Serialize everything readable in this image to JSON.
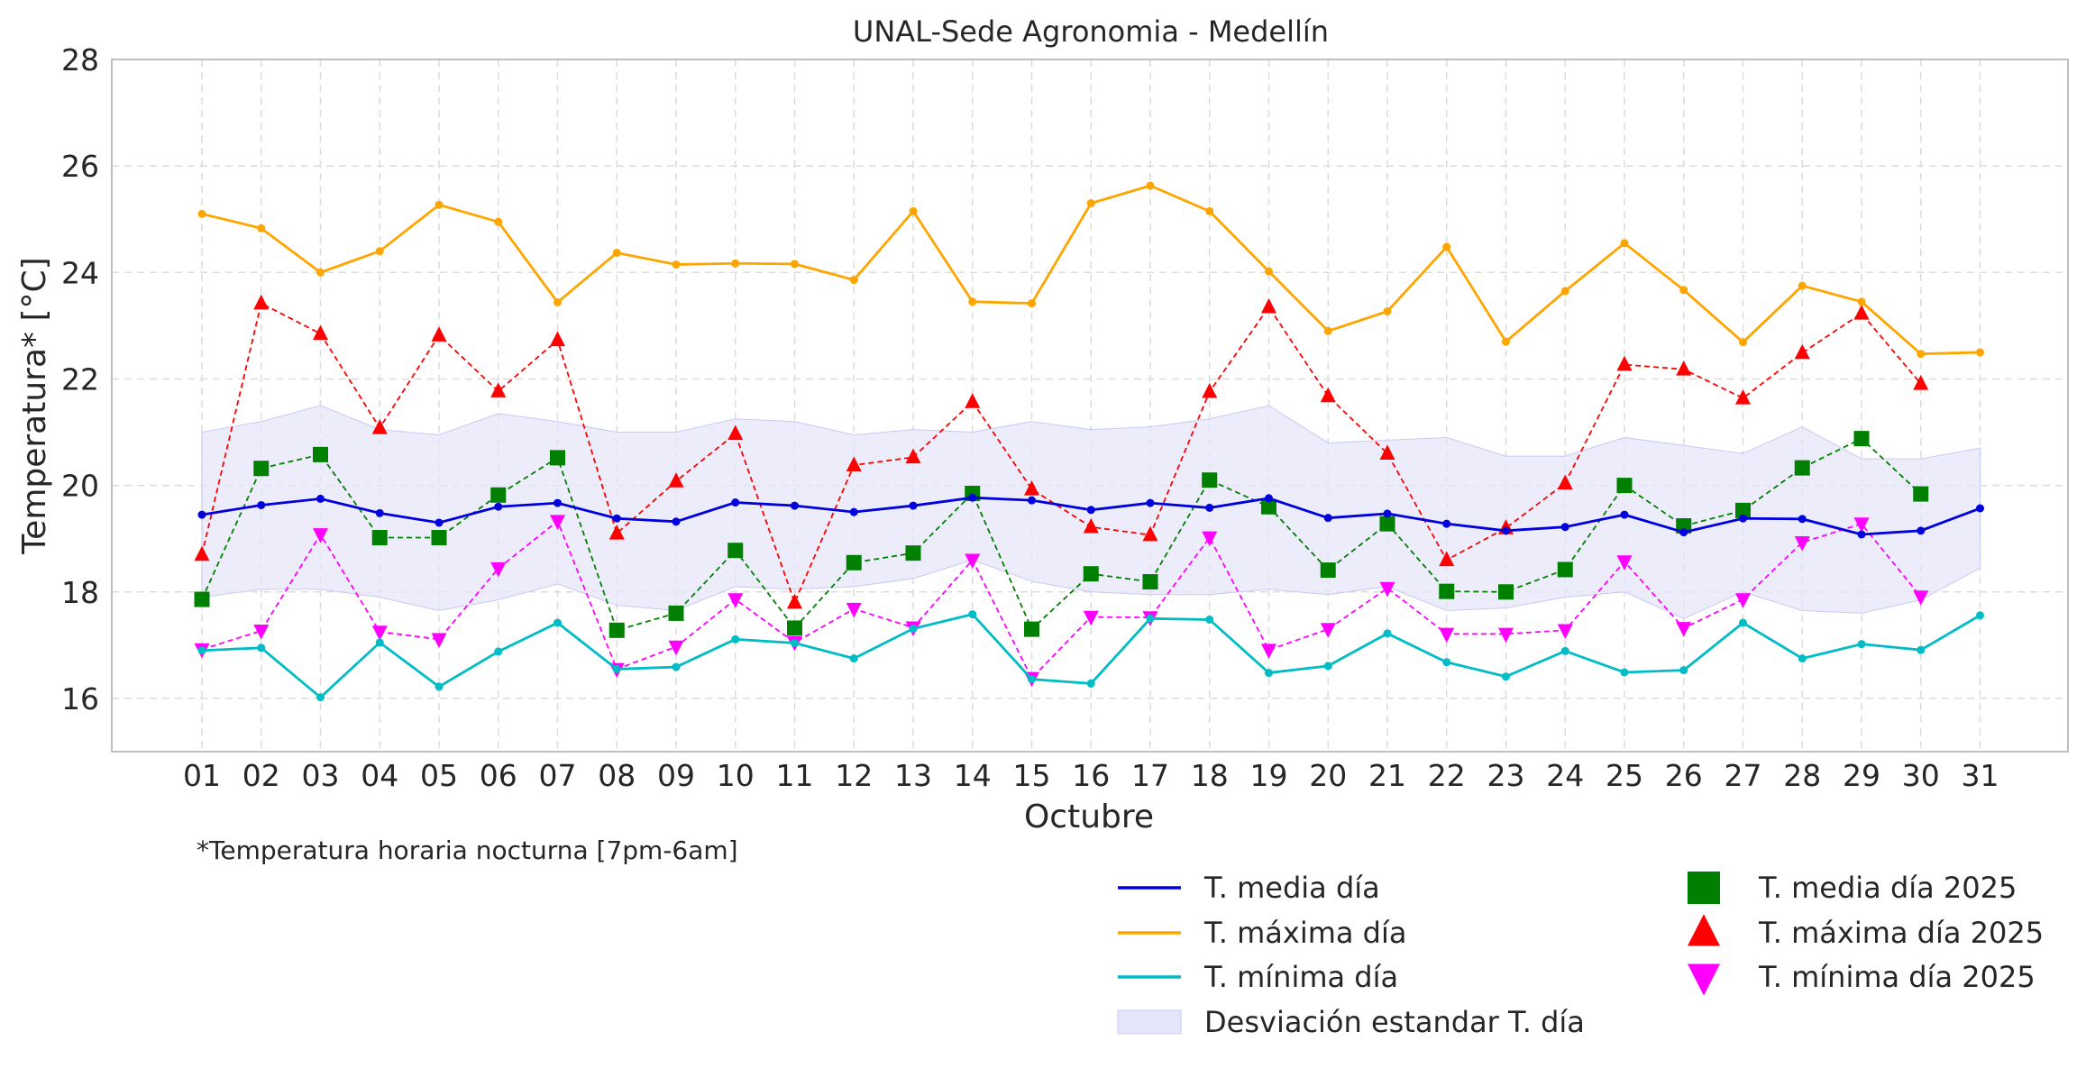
{
  "chart_data": {
    "type": "line",
    "title": "UNAL-Sede Agronomia - Medellín",
    "xlabel": "Octubre",
    "ylabel": "Temperatura* [°C]",
    "footnote": "*Temperatura horaria nocturna [7pm-6am]",
    "ylim": [
      15,
      28
    ],
    "yticks": [
      16,
      18,
      20,
      22,
      24,
      26,
      28
    ],
    "grid": true,
    "legend_position": "bottom-right, outside plot",
    "categories": [
      "01",
      "02",
      "03",
      "04",
      "05",
      "06",
      "07",
      "08",
      "09",
      "10",
      "11",
      "12",
      "13",
      "14",
      "15",
      "16",
      "17",
      "18",
      "19",
      "20",
      "21",
      "22",
      "23",
      "24",
      "25",
      "26",
      "27",
      "28",
      "29",
      "30",
      "31"
    ],
    "band": {
      "name": "Desviación estandar T. día",
      "color": "#e6e6fa",
      "upper": [
        21.0,
        21.2,
        21.5,
        21.05,
        20.95,
        21.35,
        21.2,
        21.0,
        21.0,
        21.25,
        21.2,
        20.95,
        21.05,
        21.0,
        21.2,
        21.05,
        21.1,
        21.25,
        21.5,
        20.8,
        20.85,
        20.9,
        20.55,
        20.55,
        20.9,
        20.75,
        20.6,
        21.1,
        20.5,
        20.5,
        20.7
      ],
      "lower": [
        17.9,
        18.05,
        18.05,
        17.9,
        17.65,
        17.85,
        18.15,
        17.75,
        17.65,
        18.1,
        18.05,
        18.1,
        18.25,
        18.6,
        18.2,
        18.0,
        17.95,
        17.95,
        18.05,
        17.95,
        18.1,
        17.65,
        17.7,
        17.9,
        18.0,
        17.5,
        18.0,
        17.65,
        17.6,
        17.85,
        18.45
      ]
    },
    "series": [
      {
        "name": "T. media día",
        "color": "#0000dd",
        "style": "solid",
        "marker": "dot",
        "values": [
          19.45,
          19.63,
          19.75,
          19.48,
          19.3,
          19.6,
          19.67,
          19.38,
          19.32,
          19.68,
          19.62,
          19.5,
          19.62,
          19.77,
          19.72,
          19.54,
          19.67,
          19.58,
          19.76,
          19.39,
          19.47,
          19.28,
          19.15,
          19.22,
          19.45,
          19.12,
          19.38,
          19.37,
          19.08,
          19.15,
          19.57
        ]
      },
      {
        "name": "T. máxima día",
        "color": "#ffa500",
        "style": "solid",
        "marker": "dot",
        "values": [
          25.1,
          24.83,
          24.0,
          24.4,
          25.27,
          24.95,
          23.44,
          24.37,
          24.15,
          24.17,
          24.16,
          23.86,
          25.15,
          23.45,
          23.42,
          25.3,
          25.63,
          25.15,
          24.02,
          22.9,
          23.27,
          24.48,
          22.7,
          23.65,
          24.55,
          23.67,
          22.69,
          23.75,
          23.45,
          22.47,
          22.5
        ]
      },
      {
        "name": "T. mínima día",
        "color": "#00bcc4",
        "style": "solid",
        "marker": "dot",
        "values": [
          16.9,
          16.95,
          16.02,
          17.05,
          16.22,
          16.88,
          17.42,
          16.55,
          16.59,
          17.11,
          17.04,
          16.75,
          17.31,
          17.58,
          16.36,
          16.28,
          17.5,
          17.48,
          16.48,
          16.61,
          17.22,
          16.68,
          16.41,
          16.89,
          16.49,
          16.53,
          17.42,
          16.75,
          17.02,
          16.91,
          17.56
        ]
      },
      {
        "name": "T. media día 2025",
        "color": "#008000",
        "style": "dashed",
        "marker": "square",
        "values": [
          17.86,
          20.32,
          20.58,
          19.02,
          19.02,
          19.82,
          20.52,
          17.28,
          17.6,
          18.78,
          17.32,
          18.55,
          18.73,
          19.85,
          17.3,
          18.34,
          18.19,
          20.1,
          19.6,
          18.41,
          19.28,
          18.01,
          18.0,
          18.42,
          20.0,
          19.24,
          19.53,
          20.33,
          20.88,
          19.84,
          null
        ]
      },
      {
        "name": "T. máxima día 2025",
        "color": "#ff0000",
        "style": "dashed",
        "marker": "triangle-up",
        "values": [
          18.7,
          23.42,
          22.85,
          21.08,
          22.82,
          21.77,
          22.73,
          19.1,
          20.08,
          20.97,
          17.8,
          20.38,
          20.53,
          21.57,
          19.93,
          19.22,
          19.07,
          21.76,
          23.35,
          21.68,
          20.6,
          18.6,
          19.2,
          20.04,
          22.27,
          22.18,
          21.64,
          22.49,
          23.23,
          21.91,
          null
        ]
      },
      {
        "name": "T. mínima día 2025",
        "color": "#ff00ff",
        "style": "dashed",
        "marker": "triangle-down",
        "values": [
          16.92,
          17.27,
          19.08,
          17.25,
          17.11,
          18.44,
          19.33,
          16.55,
          16.97,
          17.86,
          17.05,
          17.68,
          17.33,
          18.6,
          16.38,
          17.53,
          17.52,
          19.02,
          16.91,
          17.3,
          18.07,
          17.21,
          17.21,
          17.28,
          18.57,
          17.32,
          17.86,
          18.93,
          19.28,
          17.91,
          null
        ]
      }
    ]
  }
}
